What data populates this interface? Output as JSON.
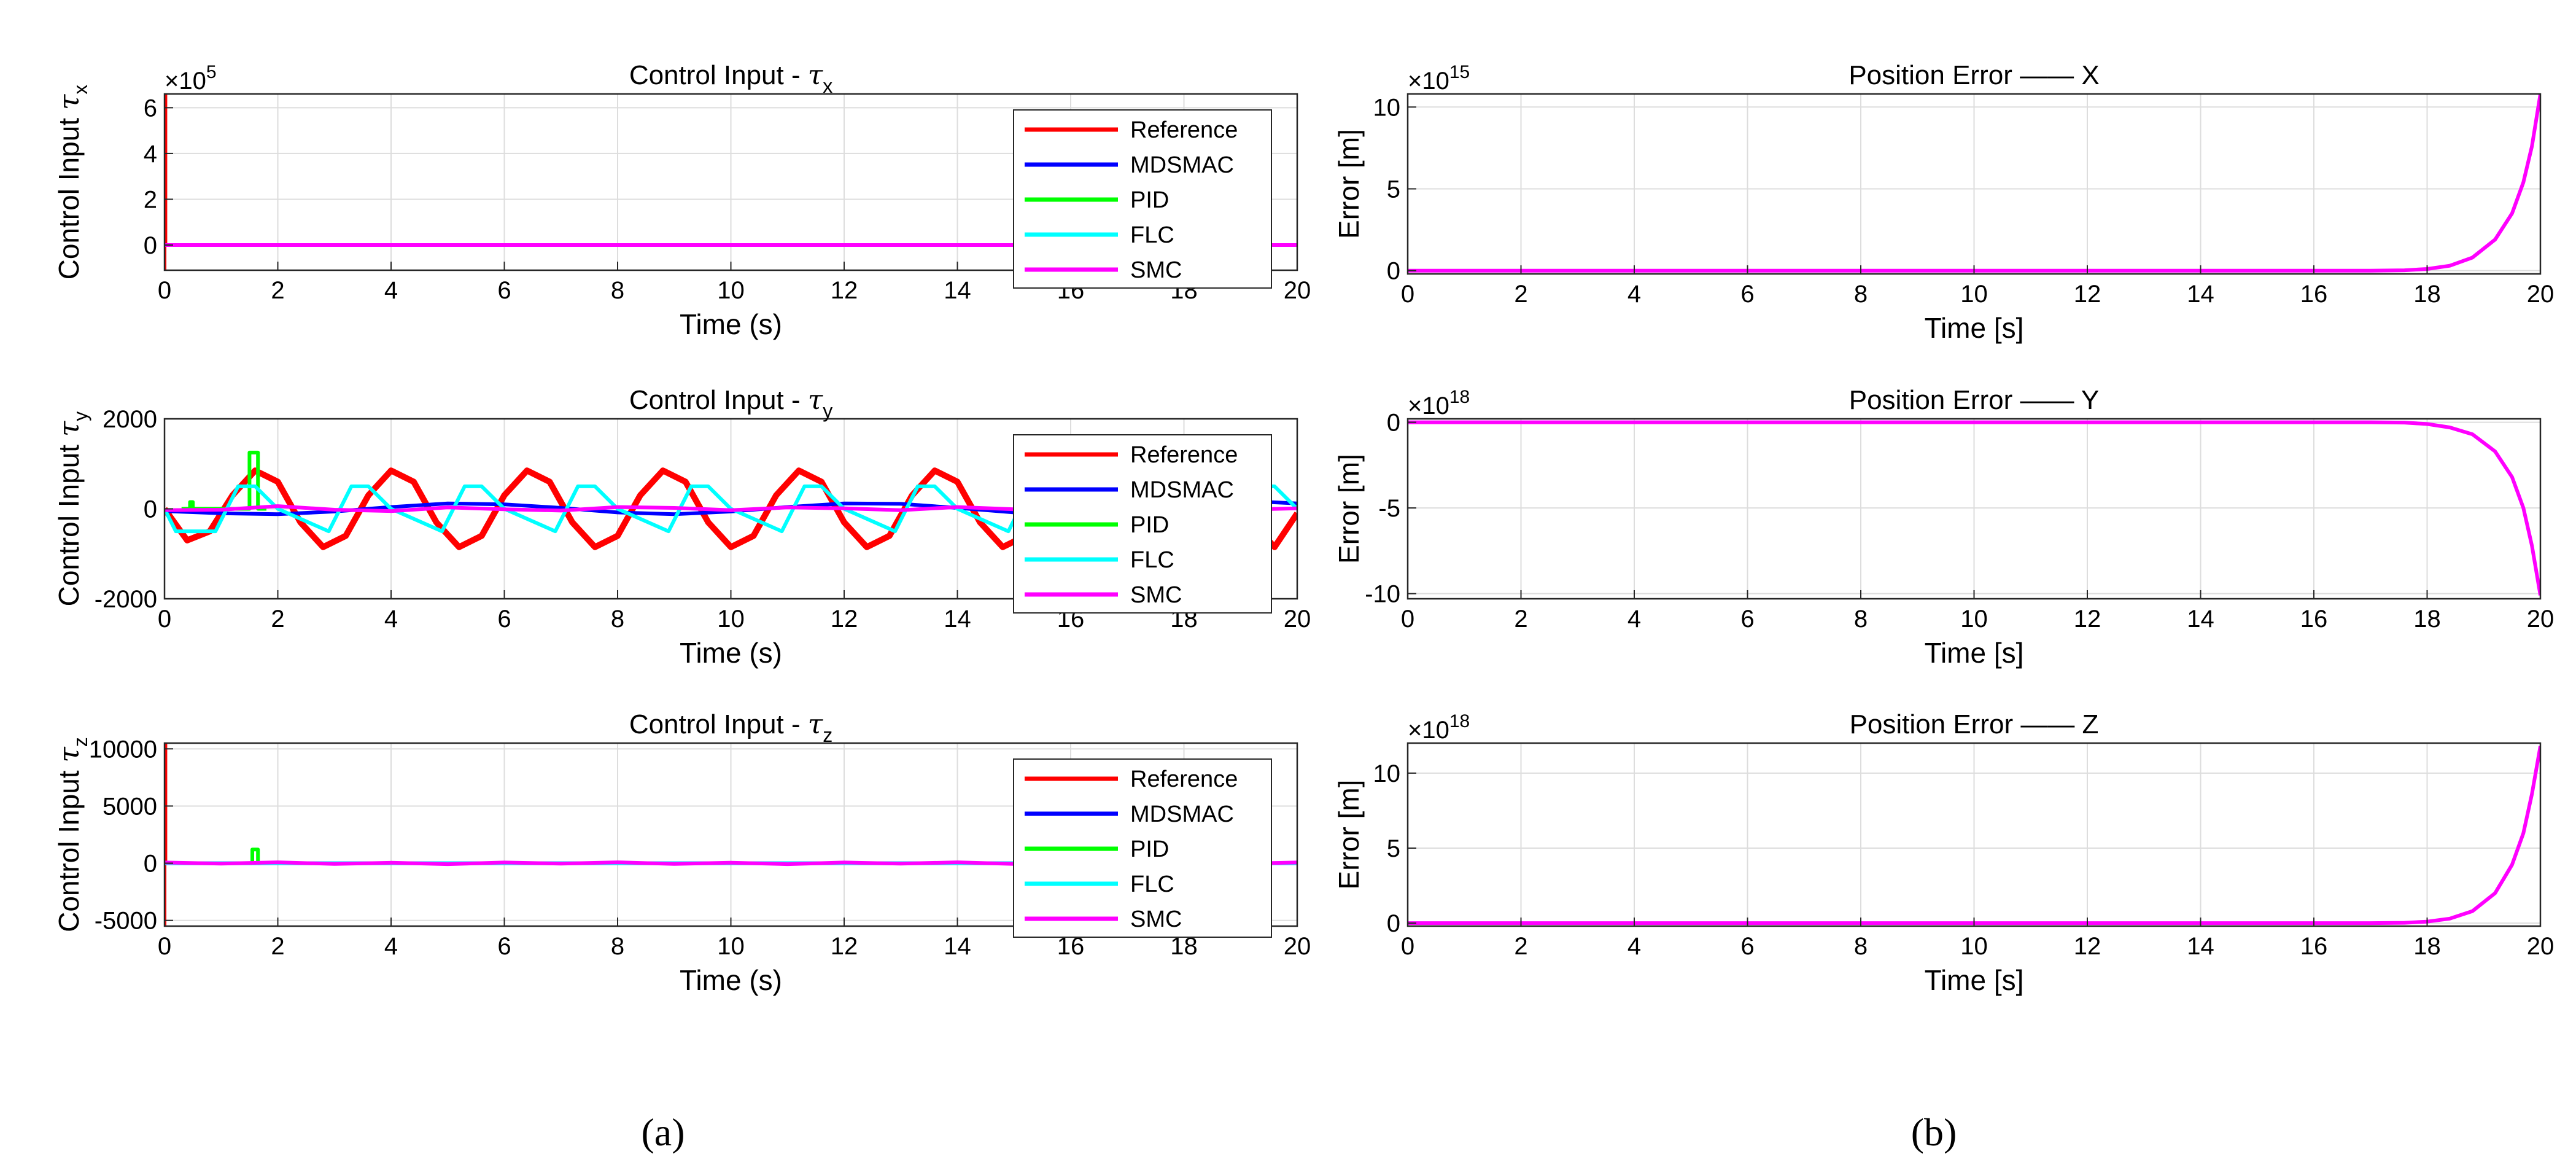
{
  "captions": {
    "left": "(a)",
    "right": "(b)"
  },
  "legend_entries": [
    "Reference",
    "MDSMAC",
    "PID",
    "FLC",
    "SMC"
  ],
  "colors": {
    "Reference": "#ff0000",
    "MDSMAC": "#0000ff",
    "PID": "#00ff00",
    "FLC": "#00ffff",
    "SMC": "#ff00ff"
  },
  "chart_data": [
    {
      "type": "line",
      "title_text": "Control Input - ",
      "title_symbol": "τ",
      "title_sub": "x",
      "xlabel": "Time (s)",
      "ylabel_text": "Control Input ",
      "ylabel_symbol": "τ",
      "ylabel_sub": "x",
      "exponent_base": "×10",
      "exponent_power": "5",
      "xlim": [
        0,
        20
      ],
      "ylim": [
        -1.1,
        6.6
      ],
      "xticks": [
        "0",
        "2",
        "4",
        "6",
        "8",
        "10",
        "12",
        "14",
        "16",
        "18",
        "20"
      ],
      "yticks": [
        {
          "v": 0,
          "label": "0"
        },
        {
          "v": 2,
          "label": "2"
        },
        {
          "v": 4,
          "label": "4"
        },
        {
          "v": 6,
          "label": "6"
        }
      ],
      "grid": true,
      "legend": "top-right",
      "series": [
        {
          "name": "Reference",
          "x": [
            0,
            0,
            0.015,
            0.015
          ],
          "y": [
            -1.1,
            6.6,
            6.6,
            0
          ]
        },
        {
          "name": "MDSMAC",
          "x": [
            0,
            20
          ],
          "y": [
            0,
            0
          ]
        },
        {
          "name": "PID",
          "x": [
            0,
            20
          ],
          "y": [
            0,
            0
          ]
        },
        {
          "name": "FLC",
          "x": [
            0,
            20
          ],
          "y": [
            0,
            0
          ]
        },
        {
          "name": "SMC",
          "x": [
            0,
            20
          ],
          "y": [
            0,
            0
          ]
        }
      ]
    },
    {
      "type": "line",
      "title_text": "Control Input - ",
      "title_symbol": "τ",
      "title_sub": "y",
      "xlabel": "Time (s)",
      "ylabel_text": "Control Input ",
      "ylabel_symbol": "τ",
      "ylabel_sub": "y",
      "exponent_base": "",
      "exponent_power": "",
      "xlim": [
        0,
        20
      ],
      "ylim": [
        -2000,
        2000
      ],
      "xticks": [
        "0",
        "2",
        "4",
        "6",
        "8",
        "10",
        "12",
        "14",
        "16",
        "18",
        "20"
      ],
      "yticks": [
        {
          "v": -2000,
          "label": "-2000"
        },
        {
          "v": 0,
          "label": "0"
        },
        {
          "v": 2000,
          "label": "2000"
        }
      ],
      "grid": true,
      "legend": "top-right",
      "series": [
        {
          "name": "Reference",
          "x": [
            0,
            0.4,
            0.8,
            1.2,
            1.6,
            2.0,
            2.4,
            2.8,
            3.2,
            3.6,
            4.0,
            4.4,
            4.8,
            5.2,
            5.6,
            6.0,
            6.4,
            6.8,
            7.2,
            7.6,
            8.0,
            8.4,
            8.8,
            9.2,
            9.6,
            10.0,
            10.4,
            10.8,
            11.2,
            11.6,
            12.0,
            12.4,
            12.8,
            13.2,
            13.6,
            14.0,
            14.4,
            14.8,
            15.2,
            15.6,
            16.0,
            16.4,
            16.8,
            17.2,
            17.6,
            18.0,
            18.4,
            18.8,
            19.2,
            19.6,
            20.0
          ],
          "y": [
            0,
            -700,
            -500,
            300,
            850,
            600,
            -300,
            -850,
            -600,
            300,
            850,
            600,
            -300,
            -850,
            -600,
            300,
            850,
            600,
            -300,
            -850,
            -600,
            300,
            850,
            600,
            -300,
            -850,
            -600,
            300,
            850,
            600,
            -300,
            -850,
            -600,
            300,
            850,
            600,
            -300,
            -850,
            -600,
            300,
            850,
            600,
            -300,
            -850,
            -600,
            300,
            850,
            600,
            -300,
            -850,
            -100
          ]
        },
        {
          "name": "MDSMAC",
          "x": [
            0,
            1,
            2,
            3,
            4,
            5,
            6,
            7,
            8,
            9,
            10,
            11,
            12,
            13,
            14,
            15,
            16,
            17,
            18,
            19,
            20
          ],
          "y": [
            -50,
            -100,
            -120,
            -60,
            40,
            120,
            100,
            20,
            -80,
            -120,
            -60,
            40,
            120,
            110,
            20,
            -80,
            -100,
            -40,
            60,
            180,
            120
          ]
        },
        {
          "name": "PID",
          "x": [
            0.3,
            0.45,
            0.45,
            0.5,
            0.5,
            1.45,
            1.5,
            1.5,
            1.65,
            1.65,
            1.8
          ],
          "y": [
            0,
            0,
            150,
            150,
            0,
            0,
            0,
            1250,
            1250,
            0,
            0
          ]
        },
        {
          "name": "FLC",
          "x": [
            0,
            0.2,
            0.9,
            1.3,
            1.6,
            2.0,
            2.9,
            3.3,
            3.6,
            4.0,
            4.9,
            5.3,
            5.6,
            6.0,
            6.9,
            7.3,
            7.6,
            8.0,
            8.9,
            9.3,
            9.6,
            10.0,
            10.9,
            11.3,
            11.6,
            12.0,
            12.9,
            13.3,
            13.6,
            14.0,
            14.9,
            15.3,
            15.6,
            16.0,
            16.9,
            17.3,
            17.6,
            18.0,
            18.9,
            19.3,
            19.6,
            20.0
          ],
          "y": [
            0,
            -500,
            -500,
            500,
            500,
            0,
            -500,
            500,
            500,
            0,
            -500,
            500,
            500,
            0,
            -500,
            500,
            500,
            0,
            -500,
            500,
            500,
            0,
            -500,
            500,
            500,
            0,
            -500,
            500,
            500,
            0,
            -500,
            500,
            500,
            0,
            -500,
            500,
            500,
            0,
            -500,
            500,
            500,
            0
          ]
        },
        {
          "name": "SMC",
          "x": [
            0,
            1,
            2,
            3,
            4,
            5,
            6,
            7,
            8,
            9,
            10,
            11,
            12,
            13,
            14,
            15,
            16,
            17,
            18,
            19,
            20
          ],
          "y": [
            -30,
            -20,
            60,
            -20,
            -50,
            30,
            -10,
            -40,
            40,
            20,
            -30,
            30,
            10,
            -30,
            40,
            -10,
            -40,
            30,
            20,
            -20,
            10
          ]
        }
      ]
    },
    {
      "type": "line",
      "title_text": "Control Input - ",
      "title_symbol": "τ",
      "title_sub": "z",
      "xlabel": "Time (s)",
      "ylabel_text": "Control Input ",
      "ylabel_symbol": "τ",
      "ylabel_sub": "z",
      "exponent_base": "",
      "exponent_power": "",
      "xlim": [
        0,
        20
      ],
      "ylim": [
        -5500,
        10500
      ],
      "xticks": [
        "0",
        "2",
        "4",
        "6",
        "8",
        "10",
        "12",
        "14",
        "16",
        "18",
        "20"
      ],
      "yticks": [
        {
          "v": -5000,
          "label": "-5000"
        },
        {
          "v": 0,
          "label": "0"
        },
        {
          "v": 5000,
          "label": "5000"
        },
        {
          "v": 10000,
          "label": "10000"
        }
      ],
      "grid": true,
      "legend": "top-right",
      "series": [
        {
          "name": "Reference",
          "x": [
            0,
            0,
            0.015,
            0.015
          ],
          "y": [
            -5500,
            10500,
            10500,
            0
          ]
        },
        {
          "name": "MDSMAC",
          "x": [
            0,
            20
          ],
          "y": [
            0,
            0
          ]
        },
        {
          "name": "PID",
          "x": [
            1.5,
            1.55,
            1.55,
            1.65,
            1.65,
            1.7
          ],
          "y": [
            0,
            0,
            1200,
            1200,
            0,
            0
          ]
        },
        {
          "name": "FLC",
          "x": [
            0,
            20
          ],
          "y": [
            0,
            0
          ]
        },
        {
          "name": "SMC",
          "x": [
            0,
            1,
            2,
            3,
            4,
            5,
            6,
            7,
            8,
            9,
            10,
            11,
            12,
            13,
            14,
            15,
            16,
            17,
            18,
            19,
            20
          ],
          "y": [
            60,
            -40,
            80,
            -60,
            40,
            -80,
            60,
            -40,
            80,
            -60,
            40,
            -80,
            60,
            -40,
            80,
            -60,
            40,
            -80,
            60,
            -40,
            60
          ]
        }
      ]
    },
    {
      "type": "line",
      "title": "Position Error —— X",
      "xlabel": "Time [s]",
      "ylabel": "Error [m]",
      "exponent_base": "×10",
      "exponent_power": "15",
      "xlim": [
        0,
        20
      ],
      "ylim": [
        -0.2,
        10.8
      ],
      "xticks": [
        "0",
        "2",
        "4",
        "6",
        "8",
        "10",
        "12",
        "14",
        "16",
        "18",
        "20"
      ],
      "yticks": [
        {
          "v": 0,
          "label": "0"
        },
        {
          "v": 5,
          "label": "5"
        },
        {
          "v": 10,
          "label": "10"
        }
      ],
      "grid": true,
      "series": [
        {
          "name": "",
          "x": [
            0,
            17,
            17.6,
            18,
            18.4,
            18.8,
            19.2,
            19.5,
            19.7,
            19.85,
            20
          ],
          "y": [
            0,
            0,
            0.02,
            0.1,
            0.3,
            0.8,
            1.9,
            3.5,
            5.4,
            7.6,
            10.8
          ]
        }
      ]
    },
    {
      "type": "line",
      "title": "Position Error —— Y",
      "xlabel": "Time [s]",
      "ylabel": "Error [m]",
      "exponent_base": "×10",
      "exponent_power": "18",
      "xlim": [
        0,
        20
      ],
      "ylim": [
        -10.3,
        0.2
      ],
      "xticks": [
        "0",
        "2",
        "4",
        "6",
        "8",
        "10",
        "12",
        "14",
        "16",
        "18",
        "20"
      ],
      "yticks": [
        {
          "v": -10,
          "label": "-10"
        },
        {
          "v": -5,
          "label": "-5"
        },
        {
          "v": 0,
          "label": "0"
        }
      ],
      "grid": true,
      "series": [
        {
          "name": "",
          "x": [
            0,
            17,
            17.6,
            18,
            18.4,
            18.8,
            19.2,
            19.5,
            19.7,
            19.85,
            20
          ],
          "y": [
            0,
            0,
            -0.02,
            -0.1,
            -0.3,
            -0.7,
            -1.7,
            -3.2,
            -5,
            -7.2,
            -10.1
          ]
        }
      ]
    },
    {
      "type": "line",
      "title": "Position Error —— Z",
      "xlabel": "Time [s]",
      "ylabel": "Error [m]",
      "exponent_base": "×10",
      "exponent_power": "18",
      "xlim": [
        0,
        20
      ],
      "ylim": [
        -0.2,
        12
      ],
      "xticks": [
        "0",
        "2",
        "4",
        "6",
        "8",
        "10",
        "12",
        "14",
        "16",
        "18",
        "20"
      ],
      "yticks": [
        {
          "v": 0,
          "label": "0"
        },
        {
          "v": 5,
          "label": "5"
        },
        {
          "v": 10,
          "label": "10"
        }
      ],
      "grid": true,
      "series": [
        {
          "name": "",
          "x": [
            0,
            17,
            17.6,
            18,
            18.4,
            18.8,
            19.2,
            19.5,
            19.7,
            19.85,
            20
          ],
          "y": [
            0,
            0,
            0.02,
            0.1,
            0.3,
            0.8,
            2,
            3.9,
            6,
            8.6,
            11.8
          ]
        }
      ]
    }
  ]
}
